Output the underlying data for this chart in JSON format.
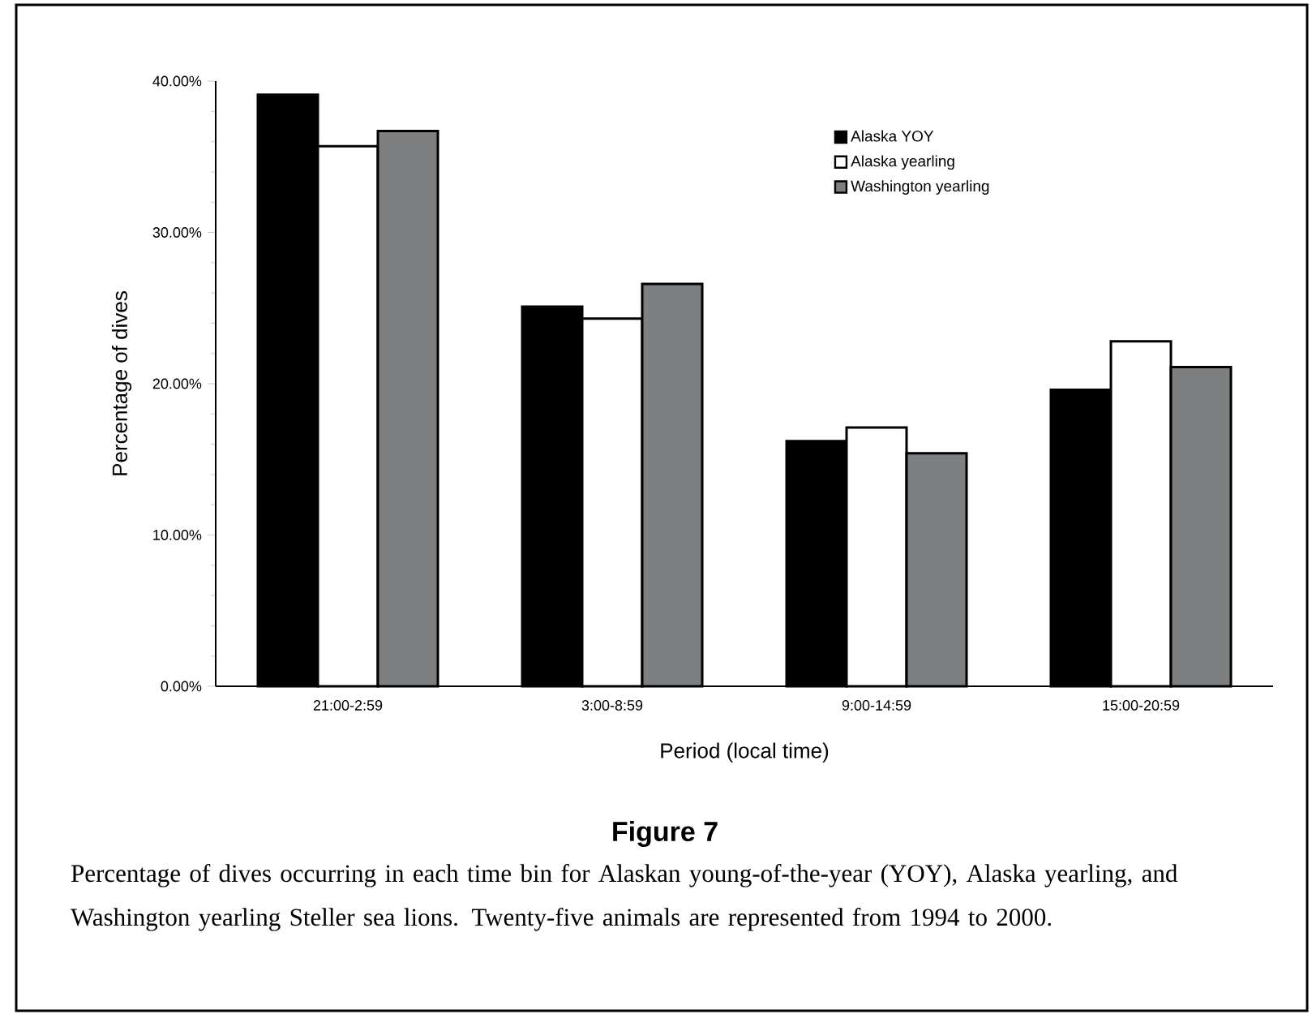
{
  "chart_data": {
    "type": "bar",
    "title": "Figure 7",
    "annotations": [
      "Percentage of dives occurring in each time bin for Alaskan young-of-the-year (YOY), Alaska yearling, and Washington yearling Steller sea lions. Twenty-five animals are represented from 1994 to 2000."
    ],
    "xlabel": "Period (local time)",
    "ylabel": "Percentage of dives",
    "categories": [
      "21:00-2:59",
      "3:00-8:59",
      "9:00-14:59",
      "15:00-20:59"
    ],
    "series": [
      {
        "name": "Alaska YOY",
        "color": "#000000",
        "values": [
          39.1,
          25.1,
          16.2,
          19.6
        ]
      },
      {
        "name": "Alaska yearling",
        "color": "#ffffff",
        "values": [
          35.7,
          24.3,
          17.1,
          22.8
        ]
      },
      {
        "name": "Washington yearling",
        "color": "#7d7f80",
        "values": [
          36.7,
          26.6,
          15.4,
          21.1
        ]
      }
    ],
    "ylim": [
      0,
      40
    ],
    "yticks": [
      {
        "value": 0,
        "label": "0.00%"
      },
      {
        "value": 10,
        "label": "10.00%"
      },
      {
        "value": 20,
        "label": "20.00%"
      },
      {
        "value": 30,
        "label": "30.00%"
      },
      {
        "value": 40,
        "label": "40.00%"
      }
    ],
    "legend": "top right",
    "grid": false
  }
}
